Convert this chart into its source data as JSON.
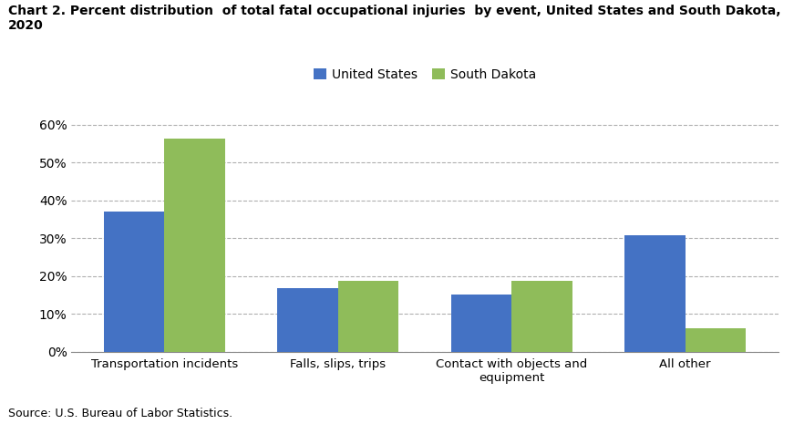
{
  "title_line1": "Chart 2. Percent distribution  of total fatal occupational injuries  by event, United States and South Dakota,",
  "title_line2": "2020",
  "categories": [
    "Transportation incidents",
    "Falls, slips, trips",
    "Contact with objects and\nequipment",
    "All other"
  ],
  "us_values": [
    0.372,
    0.169,
    0.151,
    0.308
  ],
  "sd_values": [
    0.563,
    0.188,
    0.188,
    0.063
  ],
  "us_color": "#4472C4",
  "sd_color": "#8FBC5A",
  "us_label": "United States",
  "sd_label": "South Dakota",
  "ylim": [
    0,
    0.65
  ],
  "yticks": [
    0.0,
    0.1,
    0.2,
    0.3,
    0.4,
    0.5,
    0.6
  ],
  "ytick_labels": [
    "0%",
    "10%",
    "20%",
    "30%",
    "40%",
    "50%",
    "60%"
  ],
  "source": "Source: U.S. Bureau of Labor Statistics.",
  "background_color": "#ffffff",
  "bar_width": 0.35,
  "grid_color": "#b0b0b0"
}
